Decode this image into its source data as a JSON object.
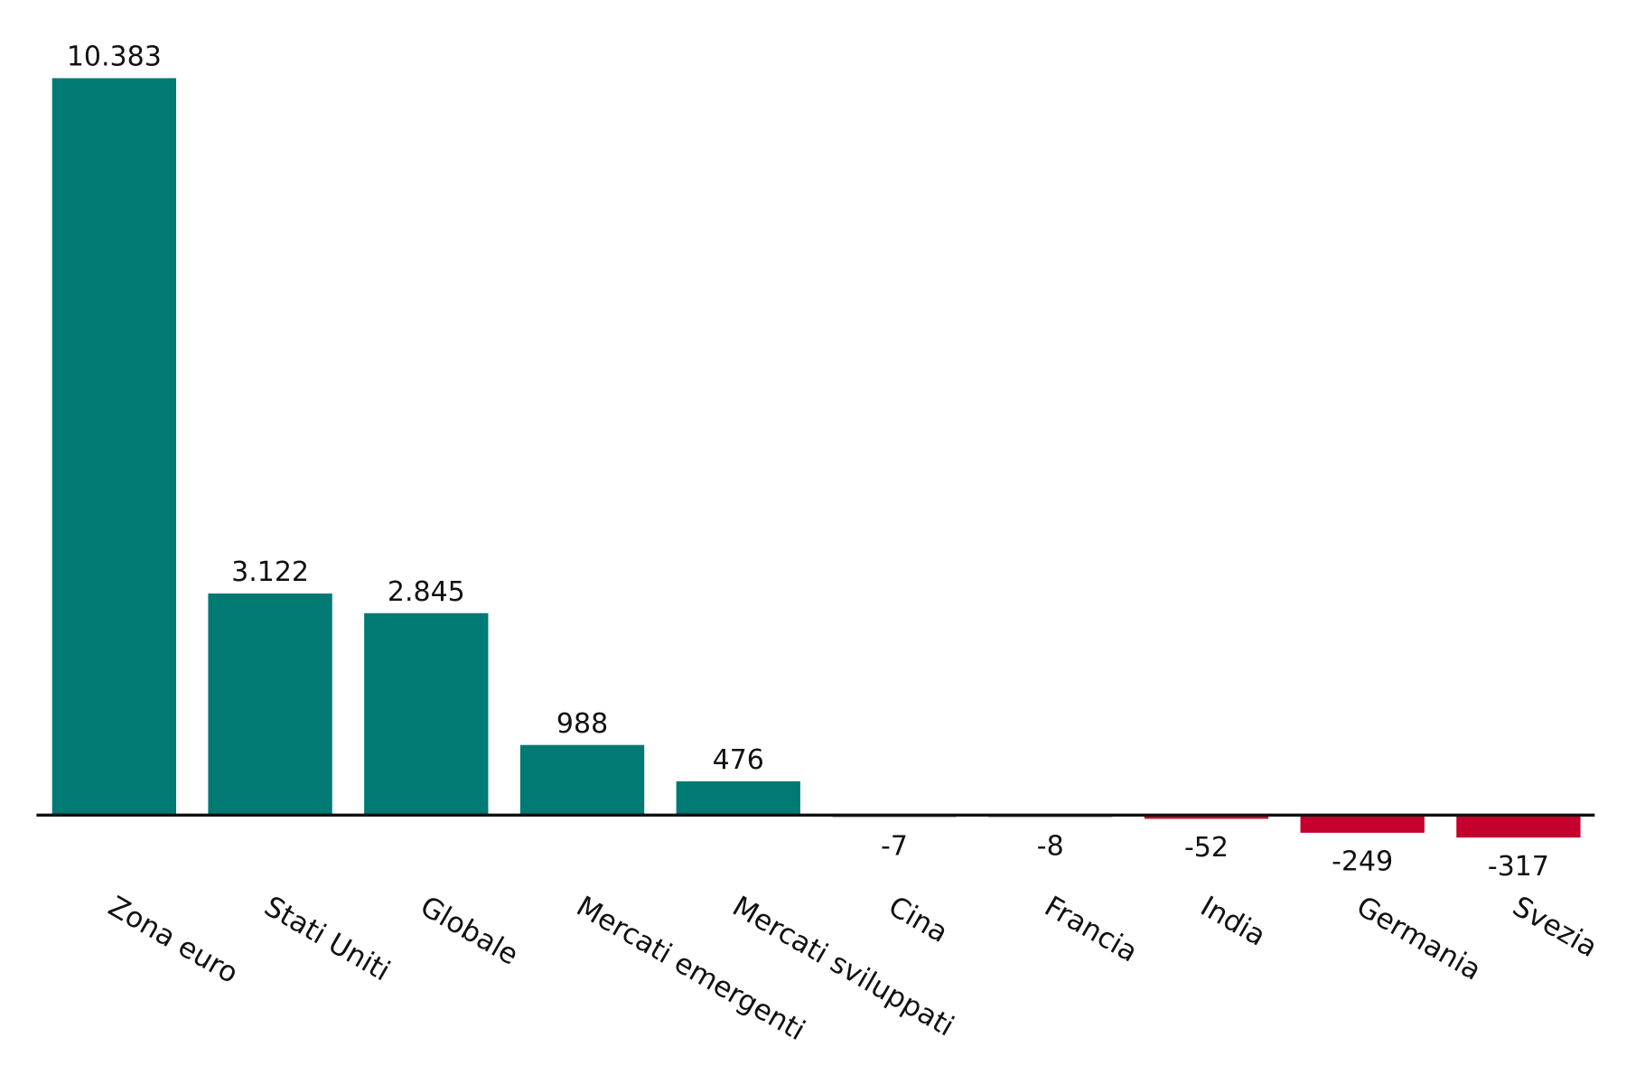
{
  "chart_data": {
    "type": "bar",
    "title": "",
    "xlabel": "",
    "ylabel": "",
    "categories": [
      "Zona euro",
      "Stati Uniti",
      "Globale",
      "Mercati emergenti",
      "Mercati sviluppati",
      "Cina",
      "Francia",
      "India",
      "Germania",
      "Svezia"
    ],
    "values": [
      10383,
      3122,
      2845,
      988,
      476,
      -7,
      -8,
      -52,
      -249,
      -317
    ],
    "value_labels": [
      "10.383",
      "3.122",
      "2.845",
      "988",
      "476",
      "-7",
      "-8",
      "-52",
      "-249",
      "-317"
    ],
    "ylim": [
      -317,
      10383
    ],
    "grid": false,
    "legend": "none",
    "colors": {
      "positive": "#007a73",
      "negative": "#c4002c",
      "small_negative": "#b8b8b8",
      "axis": "#111111"
    }
  }
}
